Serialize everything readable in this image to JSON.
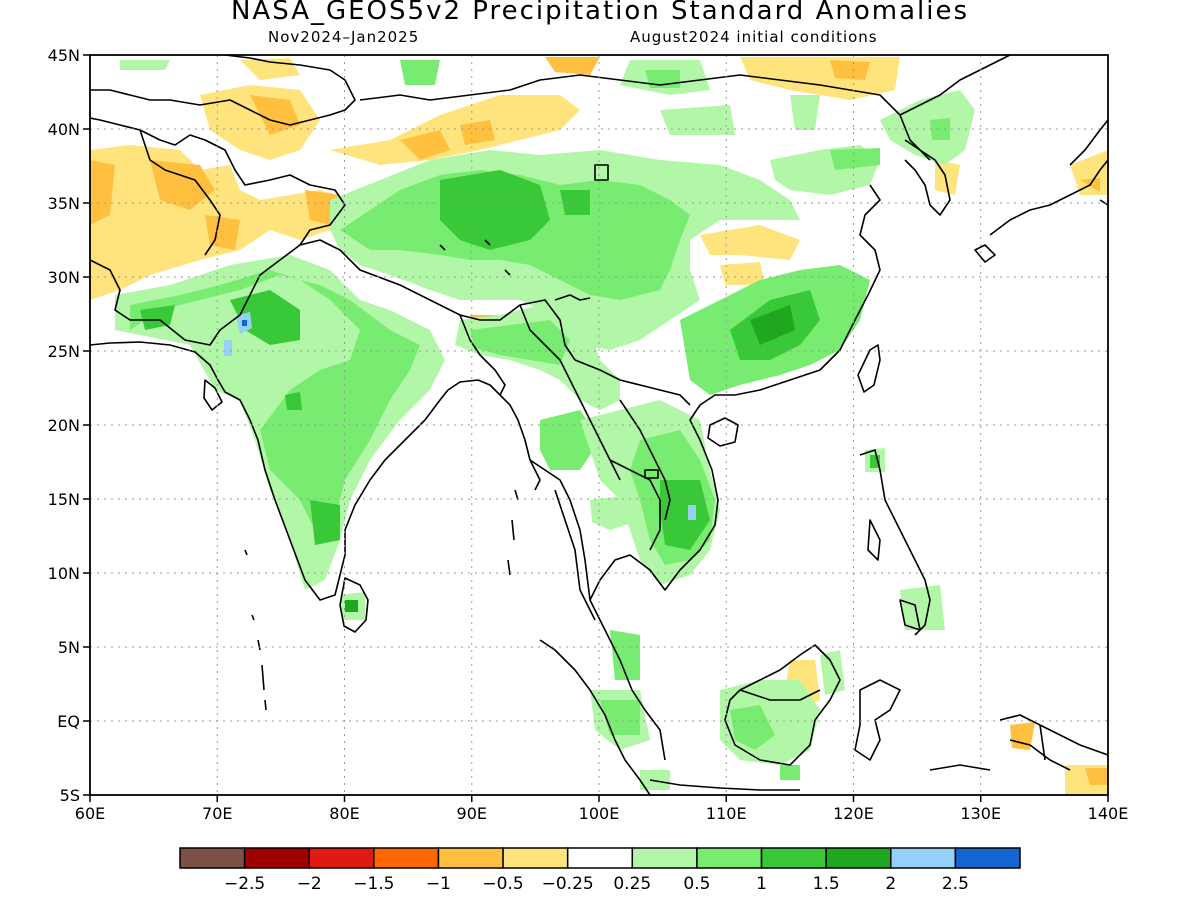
{
  "title": "NASA_GEOS5v2 Precipitation Standard Anomalies",
  "subtitle_left": "Nov2024–Jan2025",
  "subtitle_right": "August2024 initial conditions",
  "map": {
    "lon_range": [
      60,
      140
    ],
    "lat_range": [
      -5,
      45
    ],
    "lon_ticks": [
      {
        "value": 60,
        "label": "60E"
      },
      {
        "value": 70,
        "label": "70E"
      },
      {
        "value": 80,
        "label": "80E"
      },
      {
        "value": 90,
        "label": "90E"
      },
      {
        "value": 100,
        "label": "100E"
      },
      {
        "value": 110,
        "label": "110E"
      },
      {
        "value": 120,
        "label": "120E"
      },
      {
        "value": 130,
        "label": "130E"
      },
      {
        "value": 140,
        "label": "140E"
      }
    ],
    "lat_ticks": [
      {
        "value": 45,
        "label": "45N"
      },
      {
        "value": 40,
        "label": "40N"
      },
      {
        "value": 35,
        "label": "35N"
      },
      {
        "value": 30,
        "label": "30N"
      },
      {
        "value": 25,
        "label": "25N"
      },
      {
        "value": 20,
        "label": "20N"
      },
      {
        "value": 15,
        "label": "15N"
      },
      {
        "value": 10,
        "label": "10N"
      },
      {
        "value": 5,
        "label": "5N"
      },
      {
        "value": 0,
        "label": "EQ"
      },
      {
        "value": -5,
        "label": "5S"
      }
    ],
    "grid": true
  },
  "colorbar": {
    "colors": [
      "#7b5046",
      "#a00000",
      "#dd1b10",
      "#ff6600",
      "#ffc040",
      "#ffe37c",
      "#ffffff",
      "#b2f7a8",
      "#78ec70",
      "#38c838",
      "#1fa81f",
      "#95d1f7",
      "#1464d2"
    ],
    "labels": [
      "−2.5",
      "−2",
      "−1.5",
      "−1",
      "−0.5",
      "−0.25",
      "0.25",
      "0.5",
      "1",
      "1.5",
      "2",
      "2.5"
    ]
  }
}
